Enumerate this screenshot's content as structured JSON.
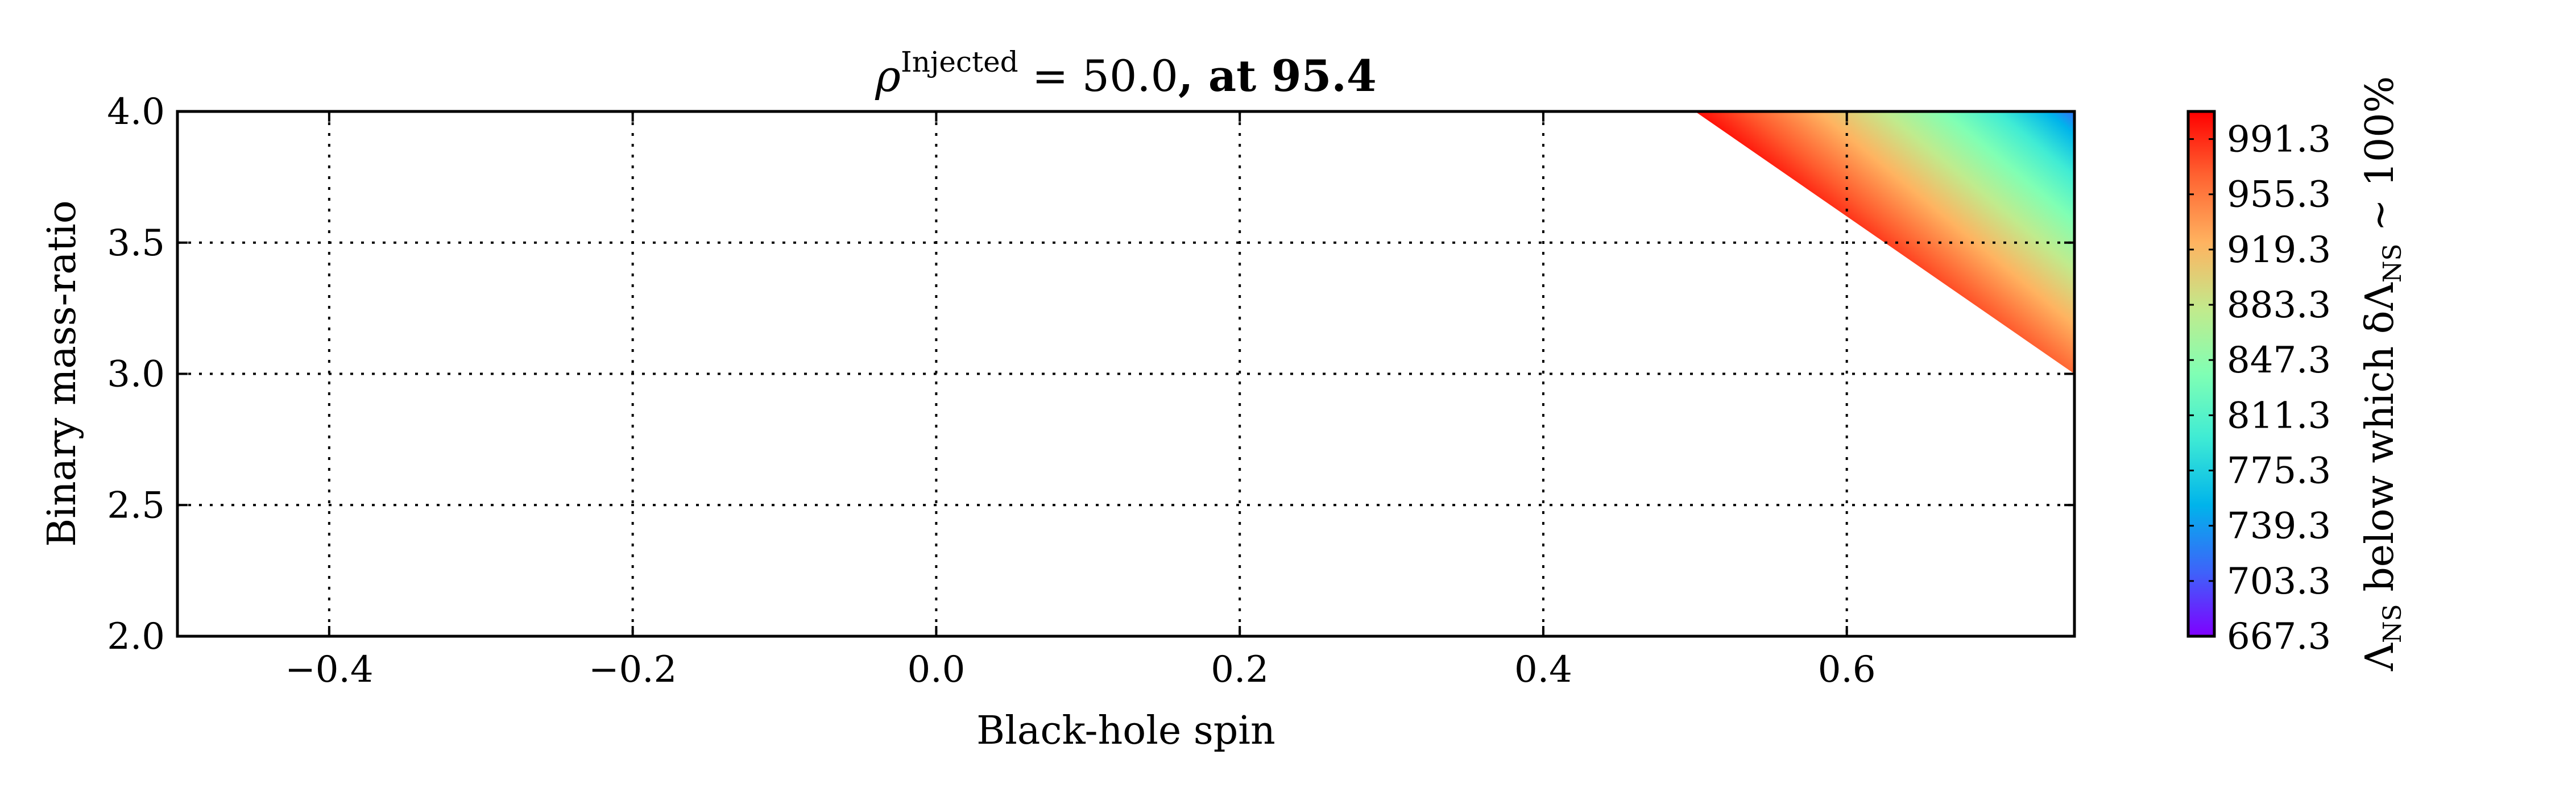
{
  "chart_data": {
    "type": "heatmap",
    "title": {
      "rho": "ρ",
      "superscript": "Injected",
      "equals": " = 50.0",
      "suffix": ", at 95.4"
    },
    "xlabel": "Black-hole spin",
    "ylabel": "Binary mass-ratio",
    "xlim": [
      -0.5,
      0.75
    ],
    "ylim": [
      2.0,
      4.0
    ],
    "x_ticks": [
      {
        "value": -0.4,
        "label": "−0.4"
      },
      {
        "value": -0.2,
        "label": "−0.2"
      },
      {
        "value": 0.0,
        "label": "0.0"
      },
      {
        "value": 0.2,
        "label": "0.2"
      },
      {
        "value": 0.4,
        "label": "0.4"
      },
      {
        "value": 0.6,
        "label": "0.6"
      }
    ],
    "y_ticks": [
      {
        "value": 2.0,
        "label": "2.0"
      },
      {
        "value": 2.5,
        "label": "2.5"
      },
      {
        "value": 3.0,
        "label": "3.0"
      },
      {
        "value": 3.5,
        "label": "3.5"
      },
      {
        "value": 4.0,
        "label": "4.0"
      }
    ],
    "grid": true,
    "filled_region": {
      "description_points": [
        [
          0.5,
          4.0
        ],
        [
          0.75,
          4.0
        ],
        [
          0.75,
          3.0
        ]
      ],
      "high_color_at": [
        0.5,
        4.0
      ],
      "low_color_at": [
        0.75,
        4.0
      ],
      "boundary_line": [
        [
          0.5,
          4.0
        ],
        [
          0.75,
          3.0
        ]
      ]
    },
    "colorbar": {
      "label_main": "Λ",
      "label_sub": "NS",
      "label_mid": " below which δΛ",
      "label_sub2": "NS",
      "label_end": " ~ 100%",
      "min": 667.3,
      "max": 1009.3,
      "ticks": [
        "667.3",
        "703.3",
        "739.3",
        "775.3",
        "811.3",
        "847.3",
        "883.3",
        "919.3",
        "955.3",
        "991.3"
      ],
      "colormap": "rainbow",
      "colors": [
        "#7f00ff",
        "#3f61fa",
        "#00b4eb",
        "#40ecd4",
        "#80ffb4",
        "#c0eb8d",
        "#ffb360",
        "#ff6130",
        "#ff0000"
      ]
    }
  }
}
